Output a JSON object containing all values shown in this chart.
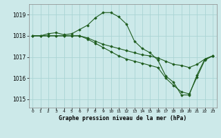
{
  "xlabel": "Graphe pression niveau de la mer (hPa)",
  "background_color": "#cce9e9",
  "grid_color": "#aad4d4",
  "line_color": "#1e5c1e",
  "ylim": [
    1014.6,
    1019.5
  ],
  "yticks": [
    1015,
    1016,
    1017,
    1018,
    1019
  ],
  "xticks": [
    0,
    1,
    2,
    3,
    4,
    5,
    6,
    7,
    8,
    9,
    10,
    11,
    12,
    13,
    14,
    15,
    16,
    17,
    18,
    19,
    20,
    21,
    22,
    23
  ],
  "series": [
    {
      "x": [
        0,
        1,
        2,
        3,
        4,
        5,
        6,
        7,
        8,
        9,
        10,
        11,
        12,
        13,
        14,
        15,
        16,
        17,
        18,
        19,
        20,
        21,
        22,
        23
      ],
      "y": [
        1018.0,
        1018.0,
        1018.1,
        1018.15,
        1018.05,
        1018.1,
        1018.3,
        1018.5,
        1018.85,
        1019.1,
        1019.1,
        1018.9,
        1018.55,
        1017.75,
        1017.4,
        1017.2,
        1016.85,
        1016.1,
        1015.8,
        1015.2,
        1015.2,
        1016.15,
        1016.9,
        1017.05
      ]
    },
    {
      "x": [
        0,
        1,
        2,
        3,
        4,
        5,
        6,
        7,
        8,
        9,
        10,
        11,
        12,
        13,
        14,
        15,
        16,
        17,
        18,
        19,
        20,
        21,
        22,
        23
      ],
      "y": [
        1018.0,
        1018.0,
        1018.0,
        1018.0,
        1018.0,
        1018.0,
        1018.0,
        1017.9,
        1017.75,
        1017.6,
        1017.5,
        1017.4,
        1017.3,
        1017.2,
        1017.1,
        1017.05,
        1016.95,
        1016.8,
        1016.65,
        1016.6,
        1016.5,
        1016.65,
        1016.9,
        1017.05
      ]
    },
    {
      "x": [
        0,
        1,
        2,
        3,
        4,
        5,
        6,
        7,
        8,
        9,
        10,
        11,
        12,
        13,
        14,
        15,
        16,
        17,
        18,
        19,
        20,
        21,
        22,
        23
      ],
      "y": [
        1018.0,
        1018.0,
        1018.0,
        1018.0,
        1018.0,
        1018.0,
        1018.0,
        1017.85,
        1017.65,
        1017.45,
        1017.25,
        1017.05,
        1016.9,
        1016.8,
        1016.7,
        1016.6,
        1016.5,
        1016.0,
        1015.65,
        1015.35,
        1015.25,
        1016.05,
        1016.85,
        1017.05
      ]
    }
  ]
}
